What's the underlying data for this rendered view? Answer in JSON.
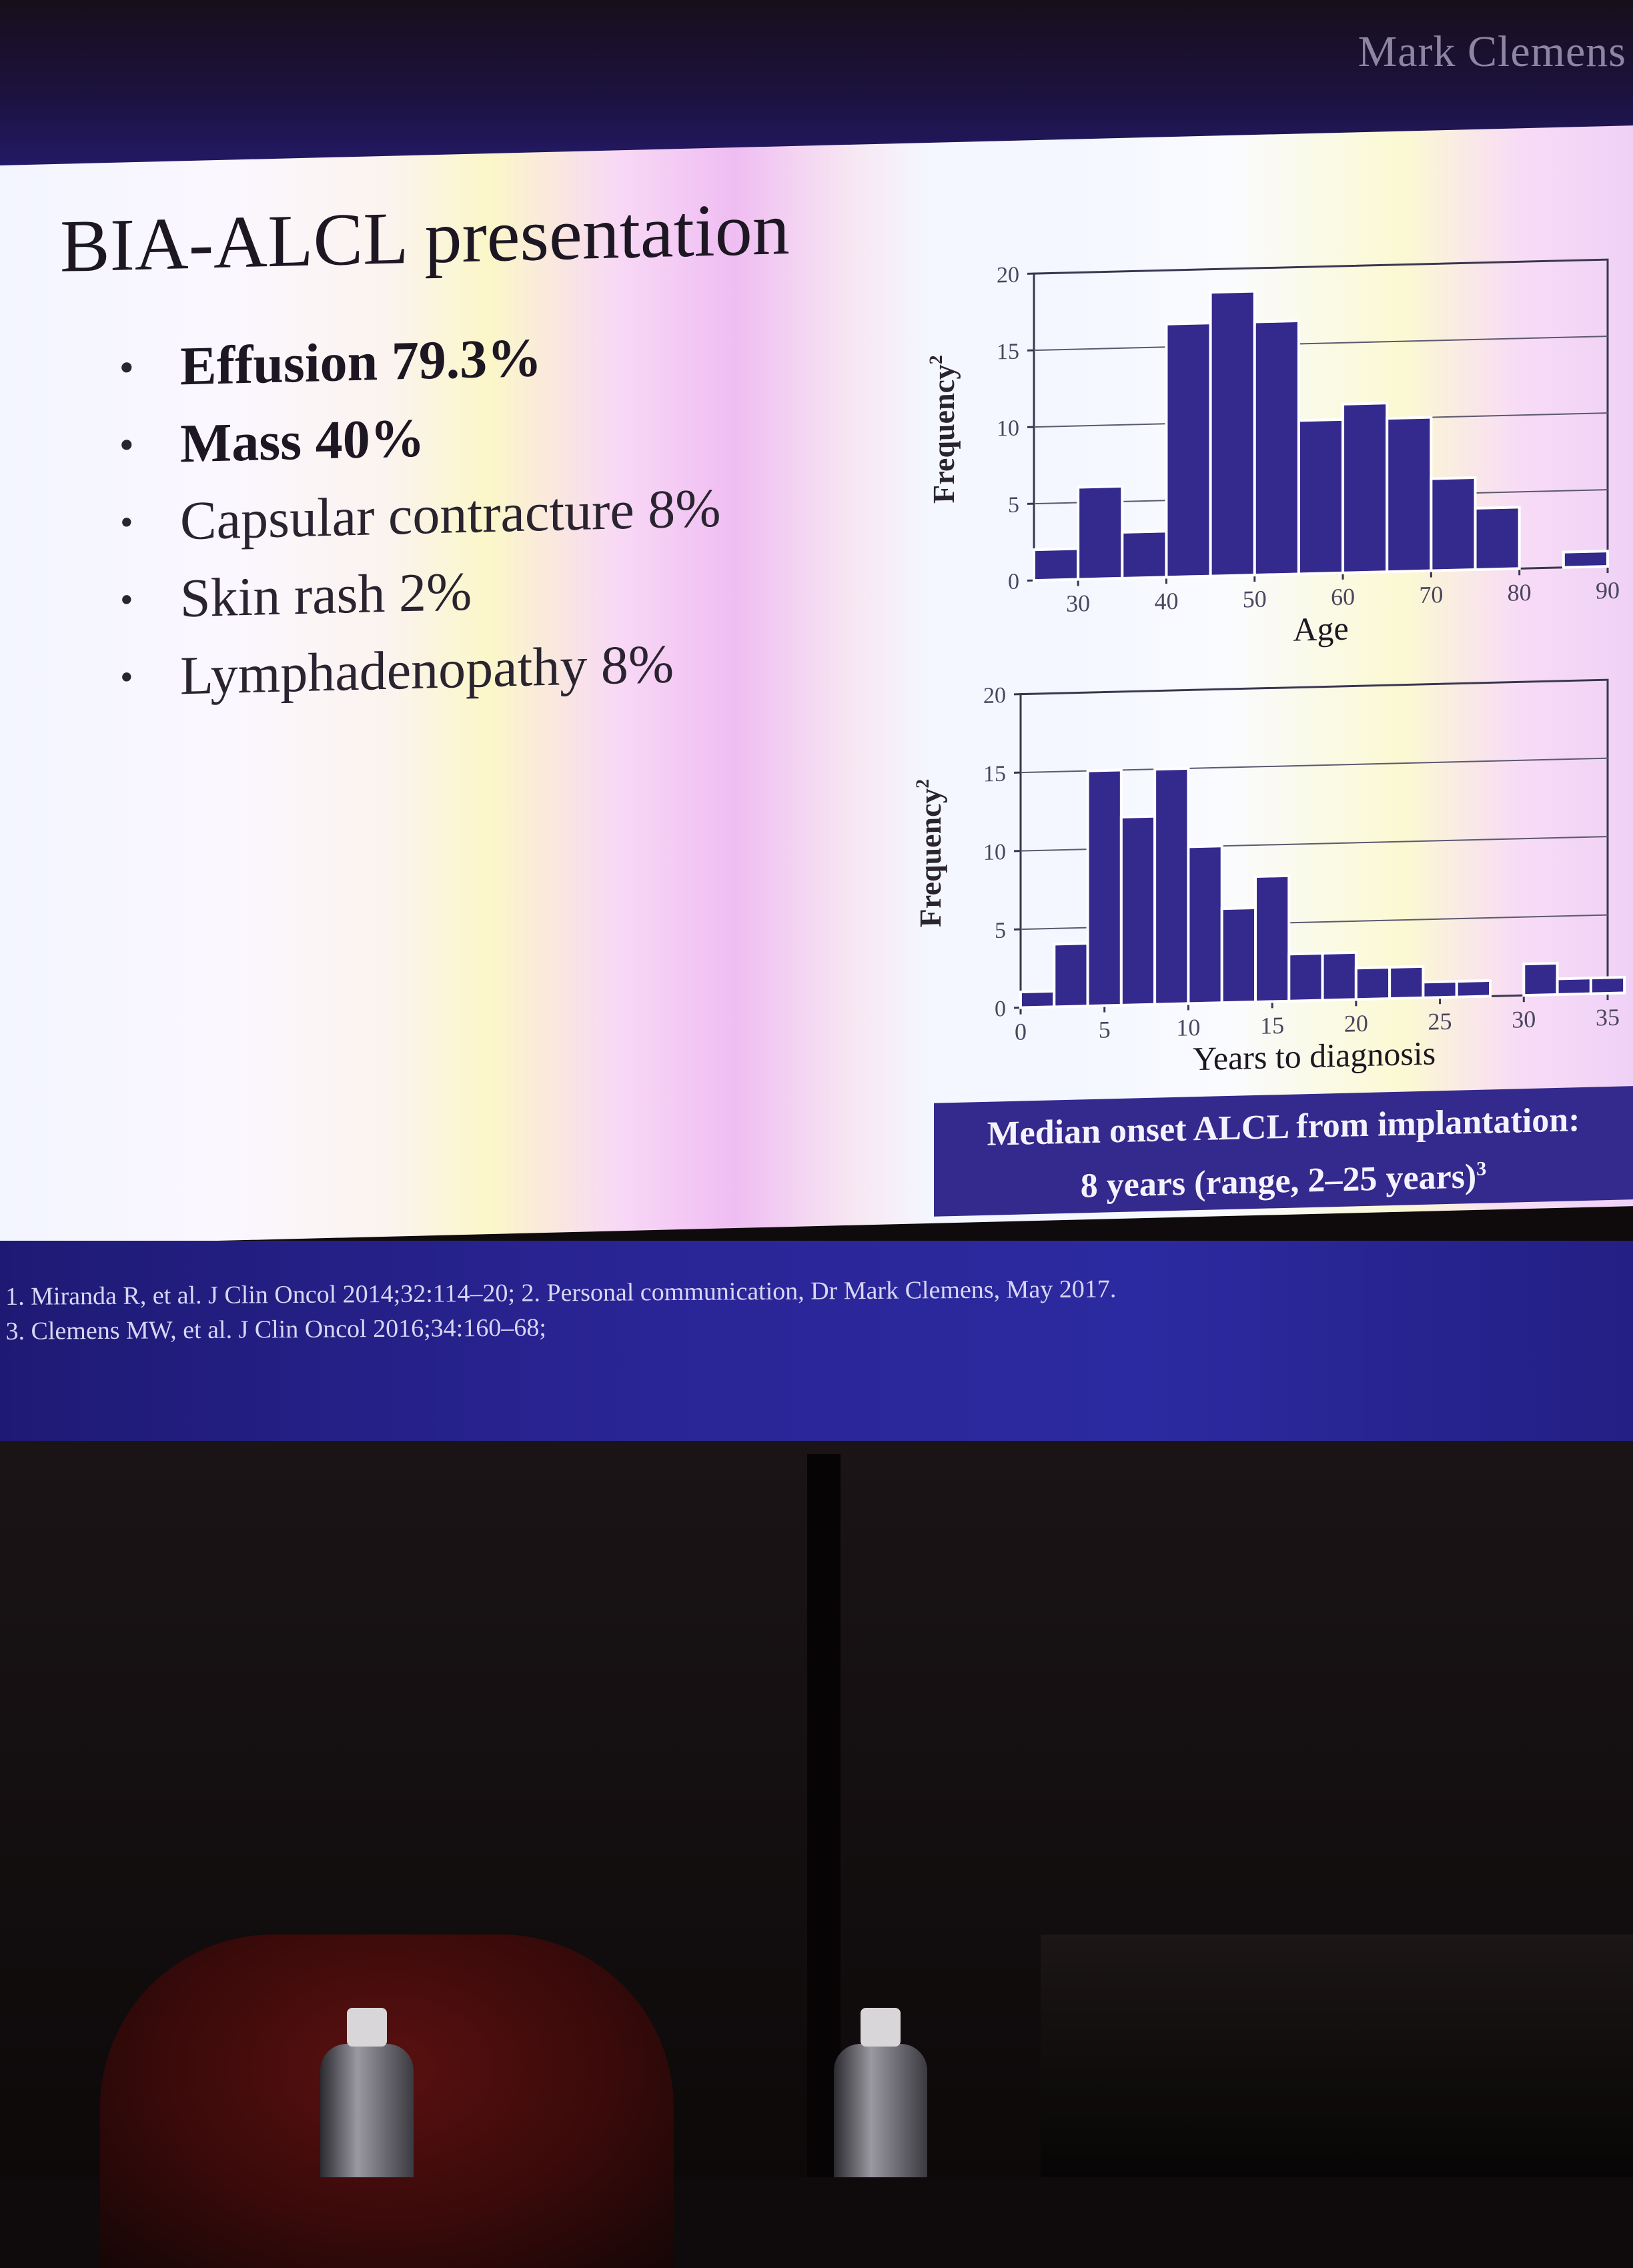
{
  "presenter": "Mark Clemens",
  "slide": {
    "title": "BIA-ALCL presentation",
    "bullets": [
      "Effusion 79.3%",
      "Mass 40%",
      "Capsular contracture 8%",
      "Skin rash 2%",
      "Lymphadenopathy 8%"
    ],
    "callout_line1": "Median onset ALCL from implantation:",
    "callout_line2": "8 years (range, 2–25 years)",
    "callout_sup": "3",
    "references": [
      "1. Miranda R, et al. J Clin Oncol 2014;32:114–20; 2. Personal communication, Dr Mark Clemens, May 2017.",
      "3. Clemens MW, et al. J Clin Oncol 2016;34:160–68;"
    ]
  },
  "chart_data": [
    {
      "type": "bar",
      "xlabel": "Age",
      "ylabel": "Frequency",
      "ylabel_sup": "2",
      "xlim": [
        25,
        90
      ],
      "ylim": [
        0,
        20
      ],
      "xticks": [
        30,
        40,
        50,
        60,
        70,
        80,
        90
      ],
      "yticks": [
        0,
        5,
        10,
        15,
        20
      ],
      "grid": true,
      "bin_width": 5,
      "bins": [
        {
          "x": 25,
          "value": 2
        },
        {
          "x": 30,
          "value": 6
        },
        {
          "x": 35,
          "value": 3
        },
        {
          "x": 40,
          "value": 16.5
        },
        {
          "x": 45,
          "value": 18.5
        },
        {
          "x": 50,
          "value": 16.5
        },
        {
          "x": 55,
          "value": 10
        },
        {
          "x": 60,
          "value": 11
        },
        {
          "x": 65,
          "value": 10
        },
        {
          "x": 70,
          "value": 6
        },
        {
          "x": 75,
          "value": 4
        },
        {
          "x": 85,
          "value": 1
        }
      ]
    },
    {
      "type": "bar",
      "xlabel": "Years to diagnosis",
      "ylabel": "Frequency",
      "ylabel_sup": "2",
      "xlim": [
        0,
        35
      ],
      "ylim": [
        0,
        20
      ],
      "xticks": [
        0,
        5,
        10,
        15,
        20,
        25,
        30,
        35
      ],
      "yticks": [
        0,
        5,
        10,
        15,
        20
      ],
      "grid": true,
      "bin_width": 2,
      "bins": [
        {
          "x": 0,
          "value": 1
        },
        {
          "x": 2,
          "value": 4
        },
        {
          "x": 4,
          "value": 15
        },
        {
          "x": 6,
          "value": 12
        },
        {
          "x": 8,
          "value": 15
        },
        {
          "x": 10,
          "value": 10
        },
        {
          "x": 12,
          "value": 6
        },
        {
          "x": 14,
          "value": 8
        },
        {
          "x": 16,
          "value": 3
        },
        {
          "x": 18,
          "value": 3
        },
        {
          "x": 20,
          "value": 2
        },
        {
          "x": 22,
          "value": 2
        },
        {
          "x": 24,
          "value": 1
        },
        {
          "x": 26,
          "value": 1
        },
        {
          "x": 30,
          "value": 2
        },
        {
          "x": 32,
          "value": 1
        },
        {
          "x": 34,
          "value": 1
        }
      ]
    }
  ],
  "colors": {
    "bar": "#34298c",
    "bar_edge": "#ffffff",
    "callout_bg": "#34298c",
    "footer_band": "#2a2596"
  }
}
